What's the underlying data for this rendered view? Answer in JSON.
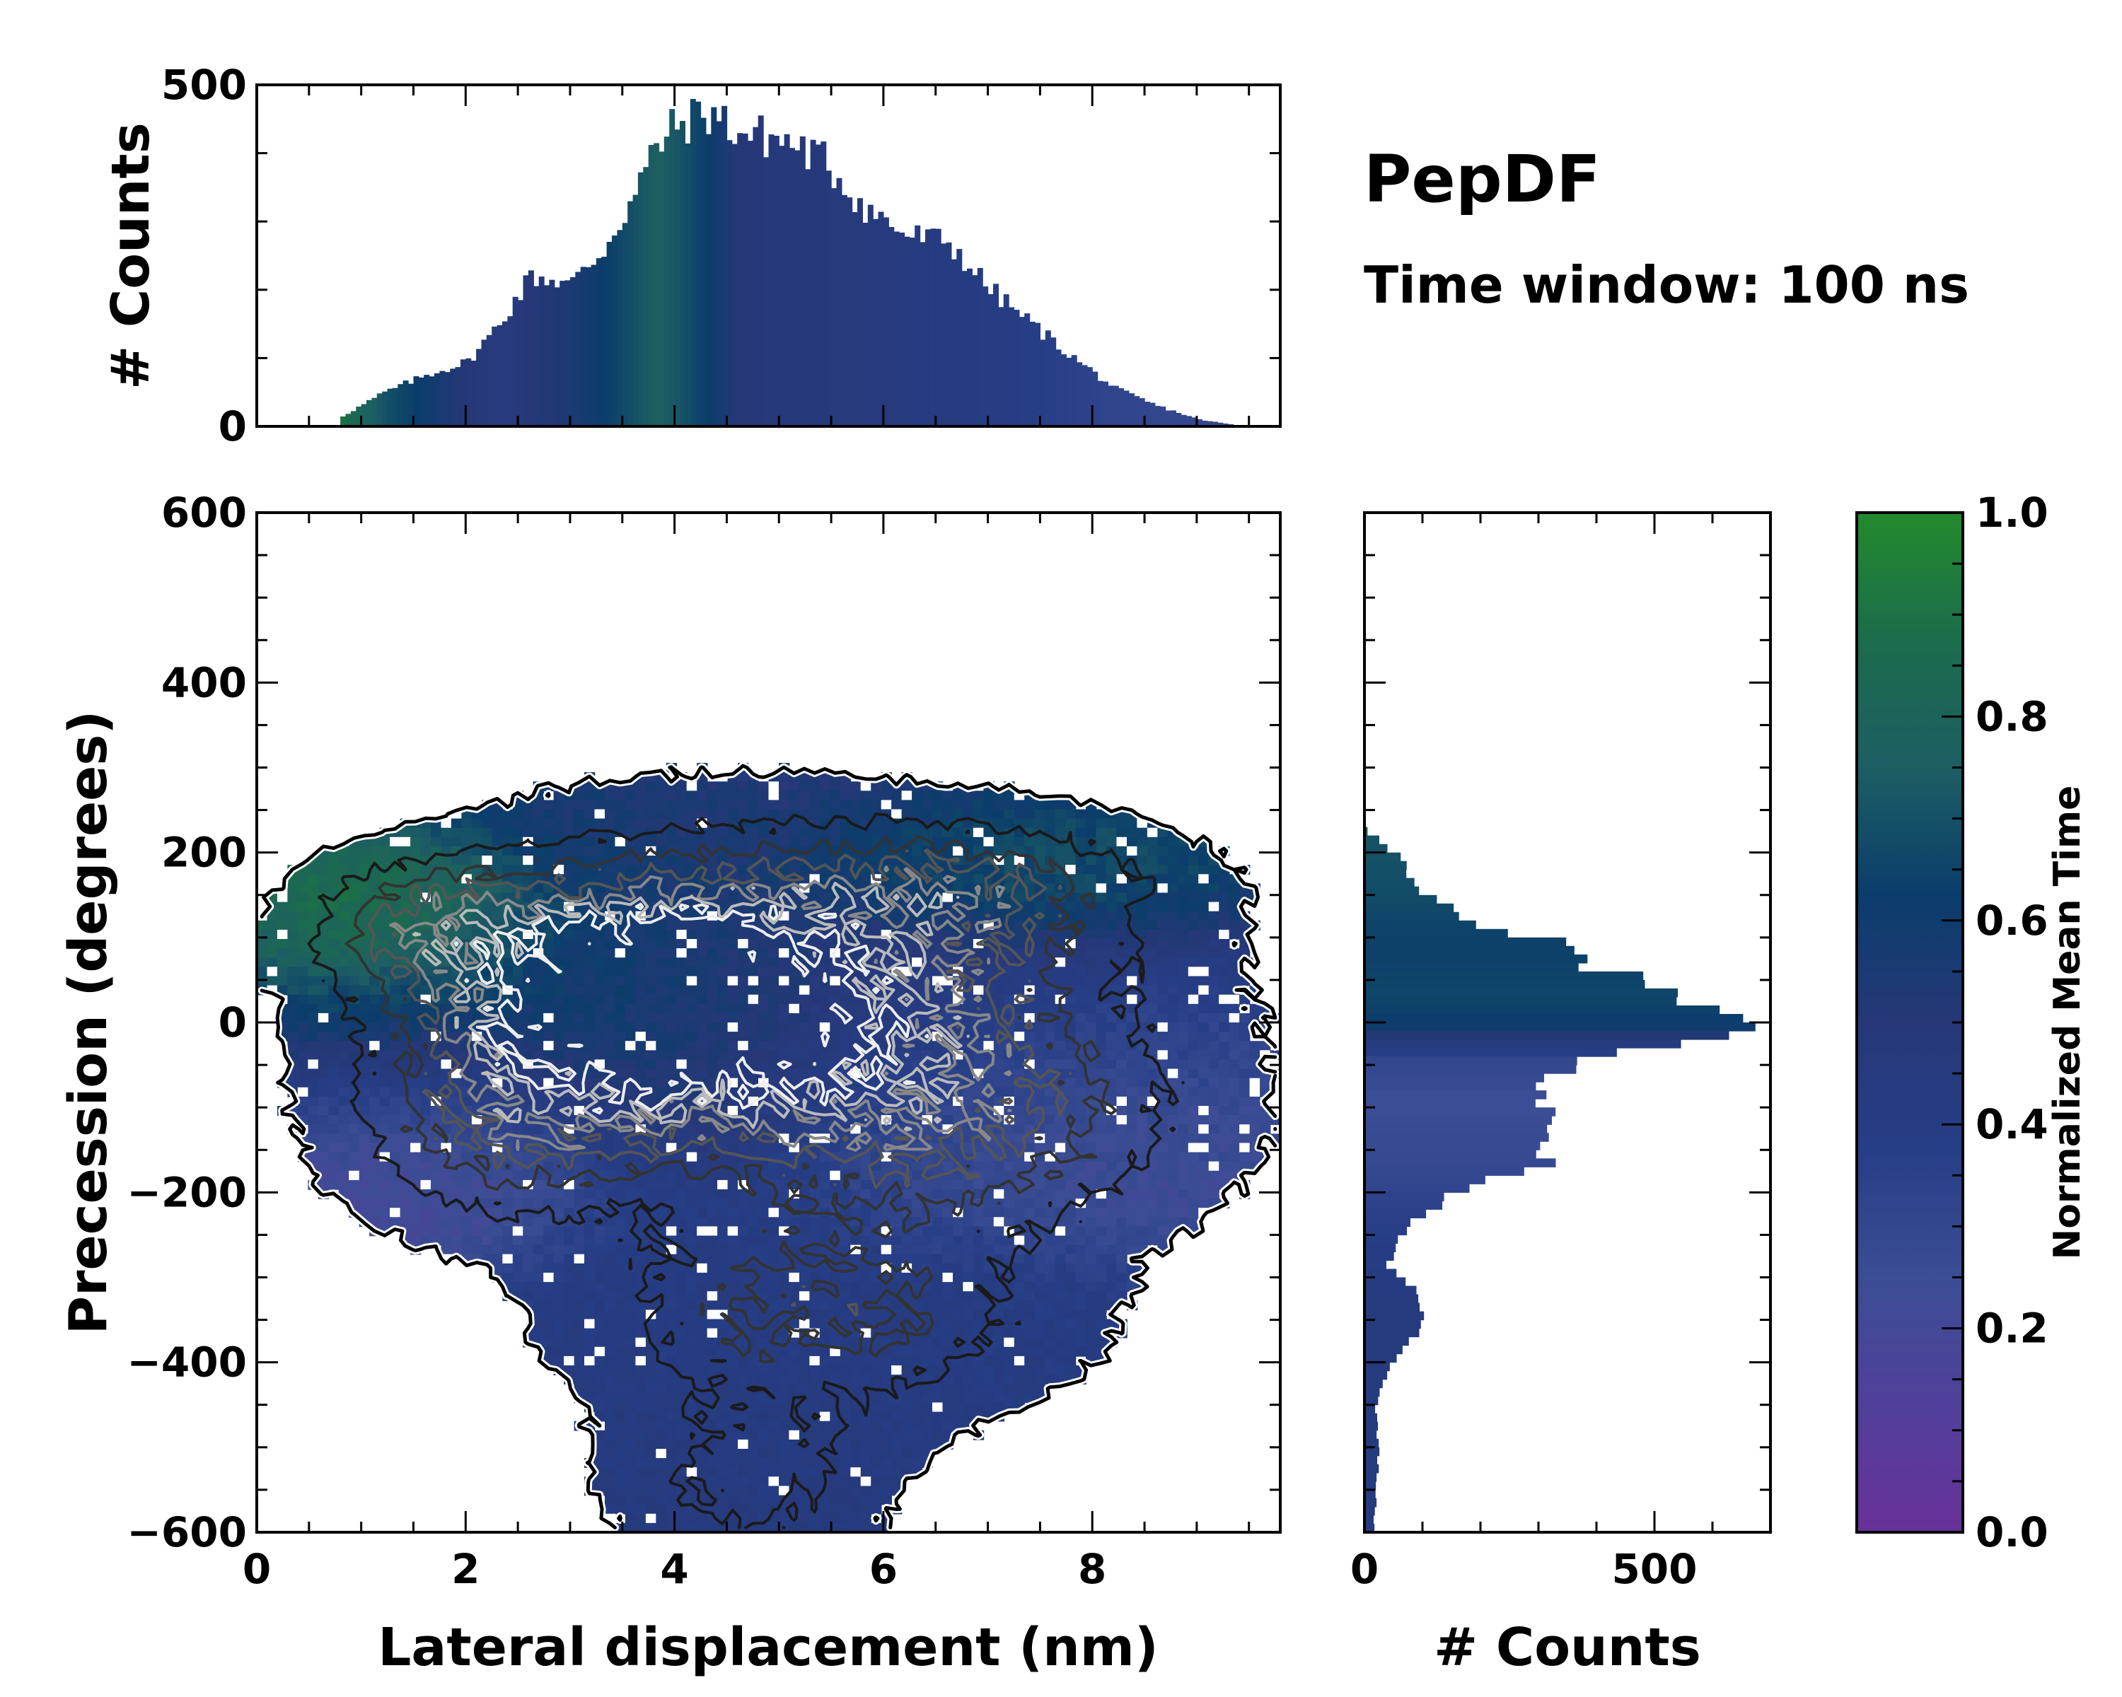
{
  "title": "PepDF",
  "subtitle": "Time window: 100 ns",
  "chart_data": {
    "type": "heatmap",
    "main": {
      "xlabel": "Lateral displacement (nm)",
      "ylabel": "Precession (degrees)",
      "xlim": [
        0,
        9.8
      ],
      "ylim": [
        -600,
        600
      ],
      "xticks": [
        0,
        2,
        4,
        6,
        8
      ],
      "yticks": [
        600,
        400,
        200,
        0,
        -200,
        -400,
        -600
      ],
      "ytick_labels": [
        "600",
        "400",
        "200",
        "0",
        "−200",
        "−400",
        "−600"
      ],
      "blobs": [
        {
          "x": 1.6,
          "y": 120,
          "sx": 0.7,
          "sy": 45,
          "w": 0.9,
          "t": 0.95
        },
        {
          "x": 3.0,
          "y": 40,
          "sx": 1.2,
          "sy": 80,
          "w": 1.0,
          "t": 0.7
        },
        {
          "x": 4.0,
          "y": 20,
          "sx": 1.4,
          "sy": 110,
          "w": 1.6,
          "t": 0.6
        },
        {
          "x": 6.8,
          "y": 160,
          "sx": 1.2,
          "sy": 50,
          "w": 0.8,
          "t": 0.78
        },
        {
          "x": 5.6,
          "y": 20,
          "sx": 1.8,
          "sy": 110,
          "w": 1.2,
          "t": 0.38
        },
        {
          "x": 2.3,
          "y": -130,
          "sx": 0.9,
          "sy": 70,
          "w": 0.8,
          "t": 0.15
        },
        {
          "x": 6.8,
          "y": -130,
          "sx": 1.4,
          "sy": 80,
          "w": 0.8,
          "t": 0.22
        },
        {
          "x": 5.4,
          "y": -340,
          "sx": 1.4,
          "sy": 80,
          "w": 0.9,
          "t": 0.42
        },
        {
          "x": 4.7,
          "y": -540,
          "sx": 0.8,
          "sy": 60,
          "w": 0.6,
          "t": 0.45
        }
      ]
    },
    "top_histogram": {
      "ylabel": "# Counts",
      "ylim": [
        0,
        500
      ],
      "yticks": [
        0,
        500
      ],
      "x": [
        0.8,
        1.2,
        1.6,
        2.0,
        2.3,
        2.6,
        3.0,
        3.3,
        3.6,
        3.8,
        4.0,
        4.3,
        4.6,
        5.0,
        5.4,
        5.8,
        6.2,
        6.6,
        7.0,
        7.4,
        7.8,
        8.2,
        8.6,
        9.0,
        9.3
      ],
      "values": [
        15,
        50,
        75,
        95,
        150,
        220,
        210,
        260,
        340,
        410,
        440,
        460,
        430,
        420,
        390,
        320,
        280,
        270,
        200,
        150,
        100,
        55,
        30,
        10,
        3
      ],
      "color_by_x": [
        0.9,
        0.7,
        0.6,
        0.5,
        0.45,
        0.5,
        0.55,
        0.62,
        0.7,
        0.76,
        0.72,
        0.62,
        0.5,
        0.48,
        0.47,
        0.46,
        0.45,
        0.42,
        0.4,
        0.38,
        0.35,
        0.32,
        0.3,
        0.3,
        0.3
      ]
    },
    "right_histogram": {
      "xlabel": "# Counts",
      "xlim": [
        0,
        700
      ],
      "xticks": [
        0,
        500
      ],
      "y": [
        230,
        200,
        160,
        120,
        100,
        80,
        60,
        40,
        20,
        0,
        -20,
        -40,
        -60,
        -80,
        -100,
        -120,
        -140,
        -160,
        -180,
        -200,
        -220,
        -250,
        -280,
        -320,
        -360,
        -400,
        -450,
        -500,
        -550,
        -600
      ],
      "values": [
        5,
        60,
        100,
        180,
        320,
        380,
        440,
        520,
        600,
        640,
        520,
        360,
        330,
        300,
        310,
        320,
        330,
        320,
        200,
        150,
        100,
        60,
        40,
        100,
        90,
        40,
        20,
        25,
        20,
        15
      ],
      "color_by_y": [
        0.7,
        0.7,
        0.68,
        0.65,
        0.64,
        0.64,
        0.65,
        0.66,
        0.64,
        0.6,
        0.45,
        0.3,
        0.28,
        0.25,
        0.25,
        0.26,
        0.27,
        0.28,
        0.3,
        0.33,
        0.35,
        0.38,
        0.4,
        0.45,
        0.45,
        0.45,
        0.45,
        0.45,
        0.45,
        0.45
      ]
    },
    "colorbar": {
      "label": "Normalized Mean Time",
      "range": [
        0.0,
        1.0
      ],
      "ticks": [
        0.0,
        0.2,
        0.4,
        0.6,
        0.8,
        1.0
      ],
      "tick_labels": [
        "0.0",
        "0.2",
        "0.4",
        "0.6",
        "0.8",
        "1.0"
      ],
      "colors": [
        "#683199",
        "#51409a",
        "#3b4d94",
        "#263e86",
        "#263878",
        "#0b3d6b",
        "#1d5e63",
        "#1b6c4c",
        "#238a2c"
      ]
    }
  }
}
